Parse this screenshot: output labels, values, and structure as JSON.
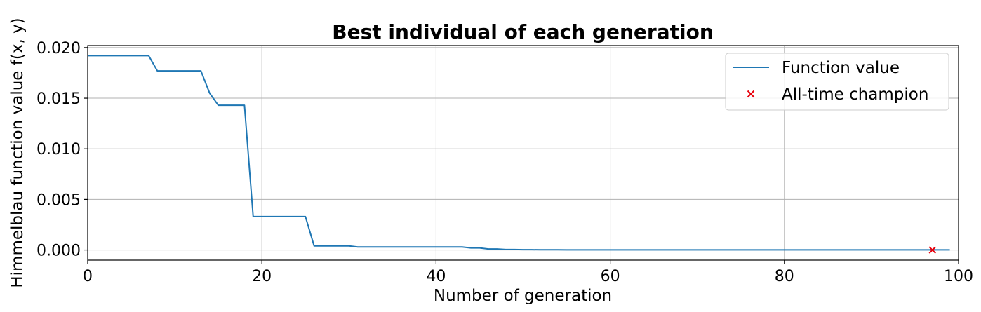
{
  "chart_data": {
    "type": "line",
    "title": "Best individual of each generation",
    "xlabel": "Number of generation",
    "ylabel": "Himmelblau function value f(x, y)",
    "xlim": [
      0,
      100
    ],
    "ylim": [
      -0.001,
      0.0202
    ],
    "xticks": [
      0,
      20,
      40,
      60,
      80,
      100
    ],
    "xtick_labels": [
      "0",
      "20",
      "40",
      "60",
      "80",
      "100"
    ],
    "yticks": [
      0.0,
      0.005,
      0.01,
      0.015,
      0.02
    ],
    "ytick_labels": [
      "0.000",
      "0.005",
      "0.010",
      "0.015",
      "0.020"
    ],
    "grid": true,
    "legend_position": "top-right",
    "series": [
      {
        "name": "Function value",
        "type": "line",
        "color": "#1f77b4",
        "x": [
          0,
          1,
          2,
          3,
          4,
          5,
          6,
          7,
          8,
          9,
          10,
          11,
          12,
          13,
          14,
          15,
          16,
          17,
          18,
          19,
          20,
          21,
          22,
          23,
          24,
          25,
          26,
          27,
          28,
          29,
          30,
          31,
          32,
          33,
          34,
          35,
          36,
          37,
          38,
          39,
          40,
          41,
          42,
          43,
          44,
          45,
          46,
          47,
          48,
          49,
          50,
          51,
          52,
          53,
          54,
          55,
          56,
          57,
          58,
          59,
          60,
          61,
          62,
          63,
          64,
          65,
          66,
          67,
          68,
          69,
          70,
          71,
          72,
          73,
          74,
          75,
          76,
          77,
          78,
          79,
          80,
          81,
          82,
          83,
          84,
          85,
          86,
          87,
          88,
          89,
          90,
          91,
          92,
          93,
          94,
          95,
          96,
          97,
          98,
          99
        ],
        "y": [
          0.0192,
          0.0192,
          0.0192,
          0.0192,
          0.0192,
          0.0192,
          0.0192,
          0.0192,
          0.0177,
          0.0177,
          0.0177,
          0.0177,
          0.0177,
          0.0177,
          0.0155,
          0.0143,
          0.0143,
          0.0143,
          0.0143,
          0.0033,
          0.0033,
          0.0033,
          0.0033,
          0.0033,
          0.0033,
          0.0033,
          0.0004,
          0.0004,
          0.0004,
          0.0004,
          0.0004,
          0.0003,
          0.0003,
          0.0003,
          0.0003,
          0.0003,
          0.0003,
          0.0003,
          0.0003,
          0.0003,
          0.0003,
          0.0003,
          0.0003,
          0.0003,
          0.0002,
          0.0002,
          0.0001,
          0.0001,
          5e-05,
          5e-05,
          3e-05,
          3e-05,
          2e-05,
          2e-05,
          2e-05,
          1e-05,
          1e-05,
          1e-05,
          1e-05,
          1e-05,
          1e-05,
          1e-05,
          1e-05,
          1e-05,
          1e-05,
          1e-05,
          1e-05,
          1e-05,
          1e-05,
          1e-05,
          1e-05,
          1e-05,
          1e-05,
          1e-05,
          1e-05,
          1e-05,
          1e-05,
          1e-05,
          1e-05,
          1e-05,
          1e-05,
          1e-05,
          1e-05,
          1e-05,
          1e-05,
          1e-05,
          1e-05,
          1e-05,
          1e-05,
          1e-05,
          1e-05,
          1e-05,
          1e-05,
          1e-05,
          1e-05,
          1e-05,
          1e-05,
          1e-05,
          1e-05,
          1e-05
        ]
      },
      {
        "name": "All-time champion",
        "type": "scatter",
        "marker": "x",
        "color": "#e8000b",
        "x": [
          97
        ],
        "y": [
          0.0
        ]
      }
    ]
  }
}
